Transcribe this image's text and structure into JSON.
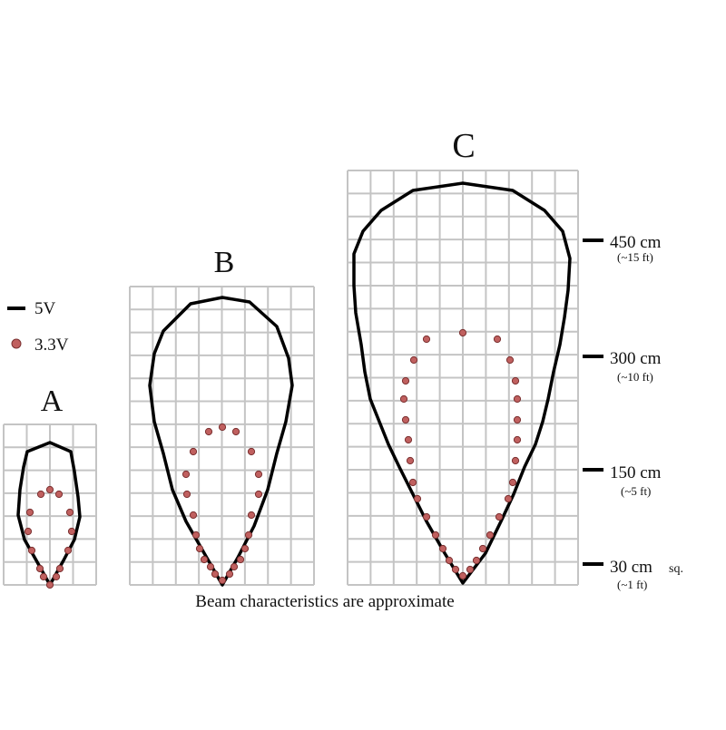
{
  "legend": {
    "solid": {
      "label": "5V",
      "color": "#000000"
    },
    "dots": {
      "label": "3.3V",
      "color": "#c0605f"
    }
  },
  "panels": [
    {
      "id": "A",
      "label": "A",
      "rows": 7,
      "cols": 4
    },
    {
      "id": "B",
      "label": "B",
      "rows": 13,
      "cols": 8
    },
    {
      "id": "C",
      "label": "C",
      "rows": 18,
      "cols": 10
    }
  ],
  "scale_marks": [
    {
      "value": "450 cm",
      "approx": "(~15 ft)"
    },
    {
      "value": "300 cm",
      "approx": "(~10 ft)"
    },
    {
      "value": "150 cm",
      "approx": "(~5 ft)"
    },
    {
      "value": "30 cm",
      "suffix": "sq.",
      "approx": "(~1 ft)"
    }
  ],
  "caption": "Beam characteristics are approximate",
  "colors": {
    "grid": "#c4c4c4",
    "beam": "#000000",
    "dot_fill": "#c0605f",
    "dot_stroke": "#7a3030"
  }
}
